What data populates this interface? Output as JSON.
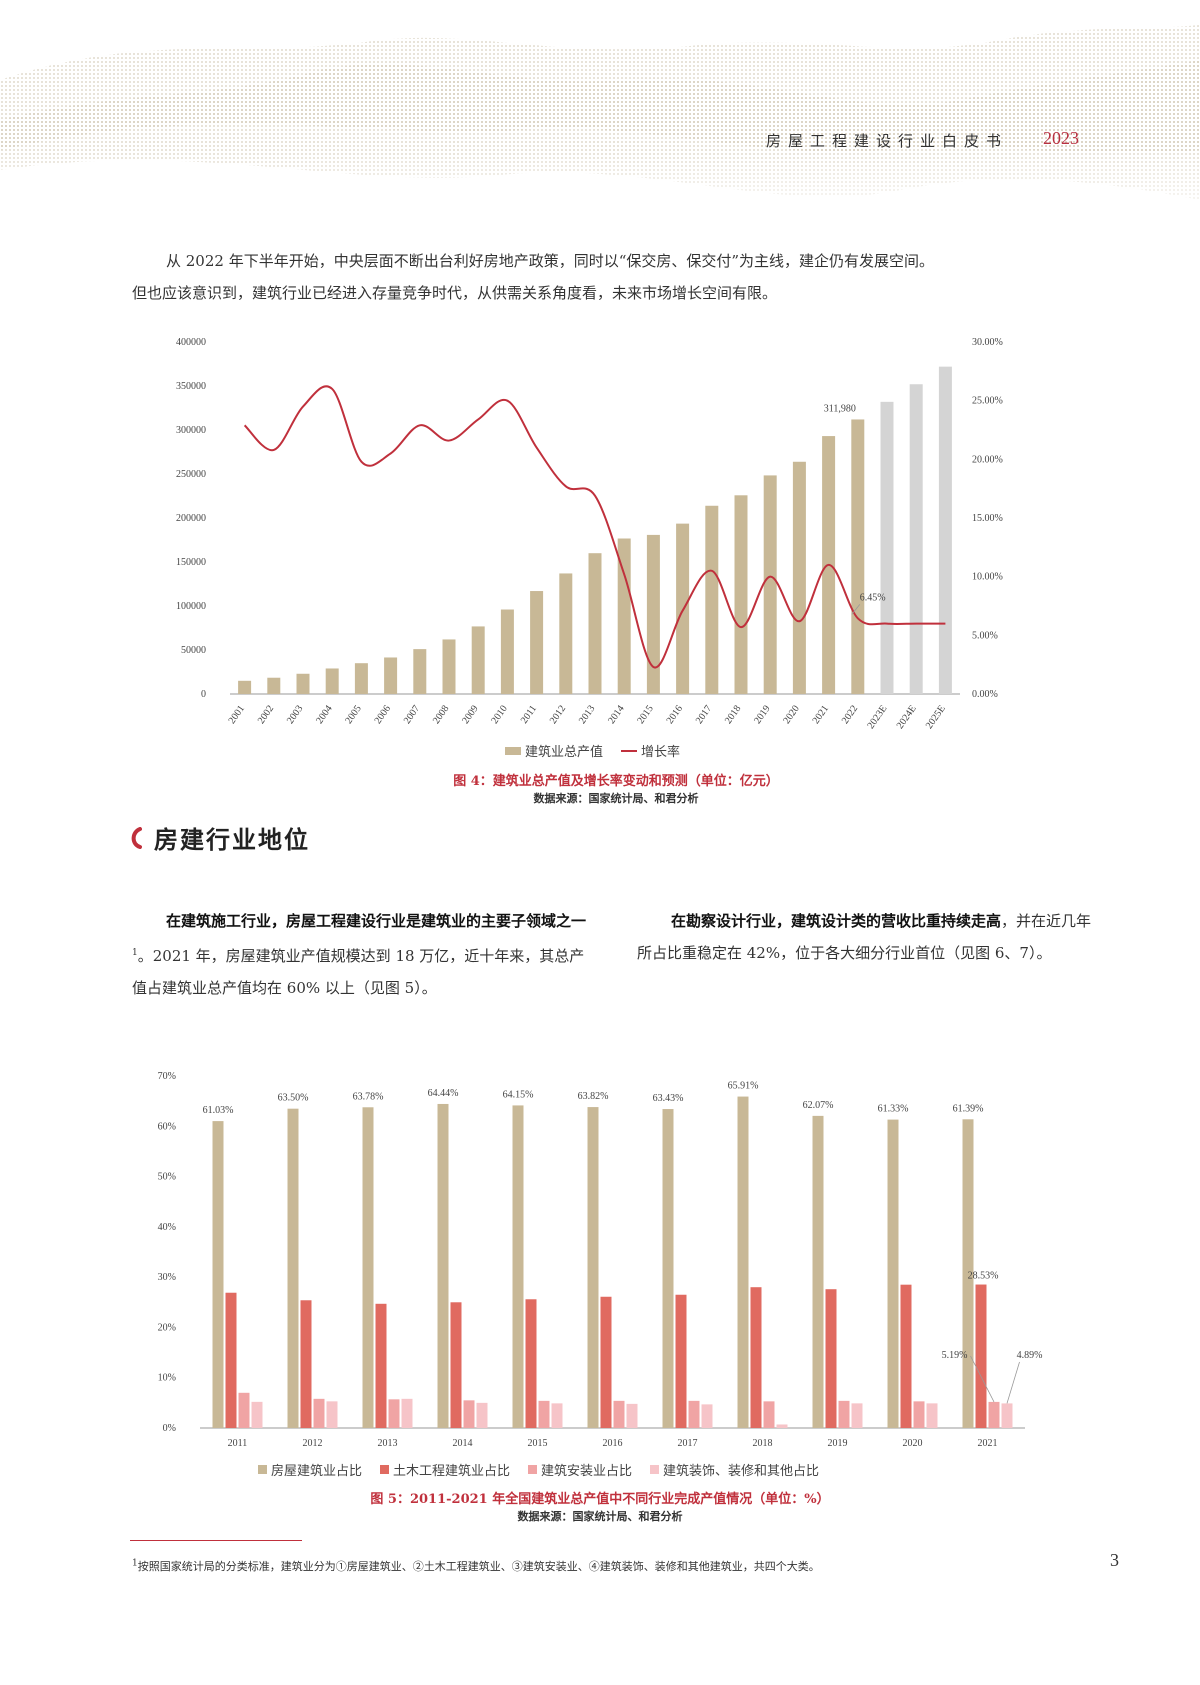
{
  "header": {
    "title": "房屋工程建设行业白皮书",
    "year": "2023"
  },
  "intro": {
    "line1": "从 2022 年下半年开始，中央层面不断出台利好房地产政策，同时以“保交房、保交付”为主线，建企仍有发展空间。",
    "line2": "但也应该意识到，建筑行业已经进入存量竞争时代，从供需关系角度看，未来市场增长空间有限。"
  },
  "figure4": {
    "legend": {
      "bar": "建筑业总产值",
      "line": "增长率"
    },
    "caption": "图 4：建筑业总产值及增长率变动和预测（单位：亿元）",
    "source": "数据来源：国家统计局、和君分析",
    "annotations": {
      "bar_2022": "311,980",
      "rate_2022": "6.45%"
    }
  },
  "section": {
    "title": "房建行业地位"
  },
  "left_col": {
    "bold": "在建筑施工行业，房屋工程建设行业是建筑业的主要子领域之一",
    "sup": "1",
    "text": "。2021 年，房屋建筑业产值规模达到 18 万亿，近十年来，其总产值占建筑业总产值均在 60% 以上（见图 5）。"
  },
  "right_col": {
    "bold": "在勘察设计行业，建筑设计类的营收比重持续走高",
    "text": "，并在近几年所占比重稳定在 42%，位于各大细分行业首位（见图 6、7）。"
  },
  "figure5": {
    "legend": [
      "房屋建筑业占比",
      "土木工程建筑业占比",
      "建筑安装业占比",
      "建筑装饰、装修和其他占比"
    ],
    "caption": "图 5：2011-2021 年全国建筑业总产值中不同行业完成产值情况（单位：%）",
    "source": "数据来源：国家统计局、和君分析"
  },
  "footnote": {
    "mark": "1",
    "text": "按照国家统计局的分类标准，建筑业分为①房屋建筑业、②土木工程建筑业、③建筑安装业、④建筑装饰、装修和其他建筑业，共四个大类。"
  },
  "page_number": "3",
  "colors": {
    "accent": "#c0303c",
    "bar_tan": "#c8b896",
    "bar_grey": "#d4d4d4",
    "civil": "#e06a60",
    "install": "#f0a4a4",
    "decor": "#f6c4c8"
  },
  "chart_data": [
    {
      "type": "bar+line",
      "title": "图 4：建筑业总产值及增长率变动和预测（单位：亿元）",
      "categories": [
        "2001",
        "2002",
        "2003",
        "2004",
        "2005",
        "2006",
        "2007",
        "2008",
        "2009",
        "2010",
        "2011",
        "2012",
        "2013",
        "2014",
        "2015",
        "2016",
        "2017",
        "2018",
        "2019",
        "2020",
        "2021",
        "2022",
        "2023E",
        "2024E",
        "2025E"
      ],
      "series": [
        {
          "name": "建筑业总产值",
          "type": "bar",
          "axis": "left",
          "values": [
            15000,
            18500,
            23000,
            29000,
            35000,
            41500,
            51000,
            62000,
            76800,
            96000,
            117000,
            137000,
            160000,
            176700,
            180800,
            193600,
            213900,
            225800,
            248400,
            263900,
            293100,
            311980,
            332000,
            352000,
            372000
          ]
        },
        {
          "name": "增长率",
          "type": "line",
          "axis": "right",
          "unit": "%",
          "values": [
            22.9,
            20.8,
            24.5,
            26.0,
            19.8,
            20.5,
            22.9,
            21.6,
            23.4,
            25.0,
            21.0,
            17.7,
            16.9,
            10.2,
            2.3,
            7.1,
            10.5,
            5.7,
            10.0,
            6.2,
            11.0,
            6.45,
            6.0,
            6.0,
            6.0
          ]
        }
      ],
      "y_left": {
        "ticks": [
          0,
          50000,
          100000,
          150000,
          200000,
          250000,
          300000,
          350000,
          400000
        ],
        "ylim": [
          0,
          400000
        ]
      },
      "y_right": {
        "ticks": [
          "0.00%",
          "5.00%",
          "10.00%",
          "15.00%",
          "20.00%",
          "25.00%",
          "30.00%"
        ],
        "ylim": [
          0,
          30
        ]
      },
      "legend_position": "bottom",
      "grid": false
    },
    {
      "type": "bar",
      "title": "图 5：2011-2021 年全国建筑业总产值中不同行业完成产值情况（单位：%）",
      "categories": [
        "2011",
        "2012",
        "2013",
        "2014",
        "2015",
        "2016",
        "2017",
        "2018",
        "2019",
        "2020",
        "2021"
      ],
      "series": [
        {
          "name": "房屋建筑业占比",
          "values": [
            61.03,
            63.5,
            63.78,
            64.44,
            64.15,
            63.82,
            63.43,
            65.91,
            62.07,
            61.33,
            61.39
          ]
        },
        {
          "name": "土木工程建筑业占比",
          "values": [
            26.9,
            25.4,
            24.7,
            25.0,
            25.6,
            26.1,
            26.5,
            28.0,
            27.6,
            28.5,
            28.53
          ]
        },
        {
          "name": "建筑安装业占比",
          "values": [
            7.0,
            5.8,
            5.7,
            5.5,
            5.4,
            5.4,
            5.4,
            5.3,
            5.4,
            5.3,
            5.19
          ]
        },
        {
          "name": "建筑装饰、装修和其他占比",
          "values": [
            5.2,
            5.3,
            5.8,
            5.0,
            4.9,
            4.8,
            4.7,
            0.7,
            4.9,
            4.9,
            4.89
          ]
        }
      ],
      "y_ticks": [
        "0%",
        "10%",
        "20%",
        "30%",
        "40%",
        "50%",
        "60%",
        "70%"
      ],
      "ylim": [
        0,
        70
      ],
      "legend_position": "bottom",
      "grid": false
    }
  ]
}
